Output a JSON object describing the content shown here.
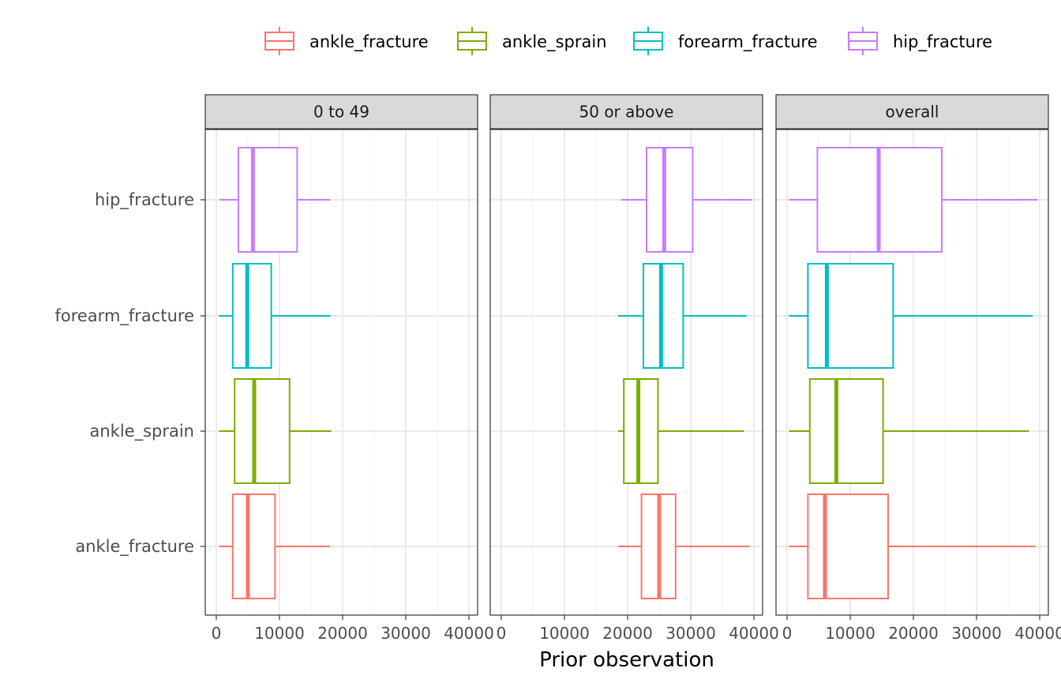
{
  "chart_data": {
    "type": "boxplot",
    "orientation": "horizontal",
    "xlabel": "Prior observation",
    "ylabel": "",
    "xlim": [
      -1500,
      41500
    ],
    "xticks": [
      0,
      10000,
      20000,
      30000,
      40000
    ],
    "xtick_labels": [
      "0",
      "10000",
      "20000",
      "30000",
      "40000"
    ],
    "grid": true,
    "legend_position": "top",
    "categories": [
      "ankle_fracture",
      "ankle_sprain",
      "forearm_fracture",
      "hip_fracture"
    ],
    "colors": {
      "ankle_fracture": "#F8766D",
      "ankle_sprain": "#7CAE00",
      "forearm_fracture": "#00BFC4",
      "hip_fracture": "#C77CFF"
    },
    "panels": [
      {
        "label": "0 to 49",
        "boxes": {
          "ankle_fracture": {
            "min": 400,
            "q1": 2600,
            "median": 5000,
            "q3": 9300,
            "max": 18000
          },
          "ankle_sprain": {
            "min": 400,
            "q1": 2900,
            "median": 6000,
            "q3": 11600,
            "max": 18200
          },
          "forearm_fracture": {
            "min": 400,
            "q1": 2600,
            "median": 4900,
            "q3": 8700,
            "max": 18100
          },
          "hip_fracture": {
            "min": 500,
            "q1": 3500,
            "median": 5800,
            "q3": 12800,
            "max": 18000
          }
        }
      },
      {
        "label": "50 or above",
        "boxes": {
          "ankle_fracture": {
            "min": 18500,
            "q1": 22200,
            "median": 25000,
            "q3": 27600,
            "max": 39300
          },
          "ankle_sprain": {
            "min": 18500,
            "q1": 19400,
            "median": 21700,
            "q3": 24800,
            "max": 38400
          },
          "forearm_fracture": {
            "min": 18500,
            "q1": 22500,
            "median": 25300,
            "q3": 28800,
            "max": 38900
          },
          "hip_fracture": {
            "min": 19000,
            "q1": 23000,
            "median": 25800,
            "q3": 30300,
            "max": 39700
          }
        }
      },
      {
        "label": "overall",
        "boxes": {
          "ankle_fracture": {
            "min": 300,
            "q1": 3300,
            "median": 6000,
            "q3": 16000,
            "max": 39300
          },
          "ankle_sprain": {
            "min": 300,
            "q1": 3600,
            "median": 7800,
            "q3": 15200,
            "max": 38300
          },
          "forearm_fracture": {
            "min": 300,
            "q1": 3300,
            "median": 6300,
            "q3": 16800,
            "max": 38900
          },
          "hip_fracture": {
            "min": 300,
            "q1": 4800,
            "median": 14500,
            "q3": 24500,
            "max": 39700
          }
        }
      }
    ]
  }
}
